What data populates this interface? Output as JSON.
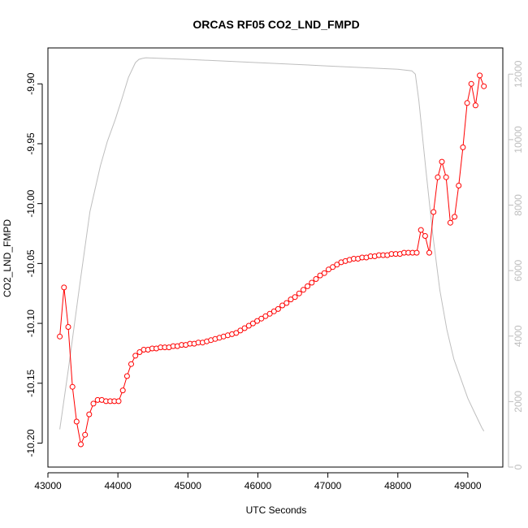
{
  "chart_data": {
    "type": "line",
    "title": "ORCAS RF05 CO2_LND_FMPD",
    "xlabel": "UTC Seconds",
    "ylabel": "CO2_LND_FMPD",
    "xlim": [
      43000,
      49500
    ],
    "ylim": [
      -10.22,
      -9.87
    ],
    "y2lim": [
      0,
      12800
    ],
    "x_ticks": [
      "43000",
      "44000",
      "45000",
      "46000",
      "47000",
      "48000",
      "49000"
    ],
    "y_ticks": [
      "-10.20",
      "-10.15",
      "-10.10",
      "-10.05",
      "-10.00",
      "-9.95",
      "-9.90"
    ],
    "y2_ticks": [
      "0",
      "2000",
      "4000",
      "6000",
      "8000",
      "10000",
      "12000"
    ],
    "grid": false,
    "colors": {
      "primary": "#ff0000",
      "secondary": "#bebebe",
      "axis": "#000000"
    },
    "series": [
      {
        "axis": "left",
        "style": "line-with-open-circles",
        "x": [
          43170,
          43230,
          43290,
          43350,
          43410,
          43470,
          43530,
          43590,
          43650,
          43710,
          43770,
          43830,
          43890,
          43950,
          44010,
          44070,
          44130,
          44190,
          44250,
          44310,
          44370,
          44430,
          44490,
          44550,
          44610,
          44670,
          44730,
          44790,
          44850,
          44910,
          44970,
          45030,
          45090,
          45150,
          45210,
          45270,
          45330,
          45390,
          45450,
          45510,
          45570,
          45630,
          45690,
          45750,
          45810,
          45870,
          45930,
          45990,
          46050,
          46110,
          46170,
          46230,
          46290,
          46350,
          46410,
          46470,
          46530,
          46590,
          46650,
          46710,
          46770,
          46830,
          46890,
          46950,
          47010,
          47070,
          47130,
          47190,
          47250,
          47310,
          47370,
          47430,
          47490,
          47550,
          47610,
          47670,
          47730,
          47790,
          47850,
          47910,
          47970,
          48030,
          48090,
          48150,
          48210,
          48270,
          48330,
          48390,
          48450,
          48510,
          48570,
          48630,
          48690,
          48750,
          48810,
          48870,
          48930,
          48990,
          49050,
          49110,
          49170,
          49230
        ],
        "y": [
          -10.111,
          -10.07,
          -10.103,
          -10.153,
          -10.182,
          -10.201,
          -10.193,
          -10.176,
          -10.167,
          -10.164,
          -10.164,
          -10.165,
          -10.165,
          -10.165,
          -10.165,
          -10.156,
          -10.144,
          -10.134,
          -10.127,
          -10.124,
          -10.122,
          -10.122,
          -10.121,
          -10.121,
          -10.12,
          -10.12,
          -10.12,
          -10.119,
          -10.119,
          -10.118,
          -10.118,
          -10.117,
          -10.117,
          -10.116,
          -10.116,
          -10.115,
          -10.114,
          -10.113,
          -10.112,
          -10.111,
          -10.11,
          -10.109,
          -10.108,
          -10.106,
          -10.104,
          -10.102,
          -10.1,
          -10.098,
          -10.096,
          -10.094,
          -10.092,
          -10.09,
          -10.088,
          -10.085,
          -10.083,
          -10.08,
          -10.078,
          -10.075,
          -10.072,
          -10.069,
          -10.066,
          -10.063,
          -10.06,
          -10.058,
          -10.055,
          -10.053,
          -10.051,
          -10.049,
          -10.048,
          -10.047,
          -10.046,
          -10.046,
          -10.045,
          -10.045,
          -10.044,
          -10.044,
          -10.043,
          -10.043,
          -10.043,
          -10.042,
          -10.042,
          -10.042,
          -10.041,
          -10.041,
          -10.041,
          -10.041,
          -10.022,
          -10.027,
          -10.041,
          -10.007,
          -9.978,
          -9.965,
          -9.978,
          -10.016,
          -10.011,
          -9.985,
          -9.953,
          -9.916,
          -9.9,
          -9.918,
          -9.893,
          -9.902
        ]
      },
      {
        "axis": "right",
        "style": "line",
        "x": [
          43170,
          43300,
          43450,
          43600,
          43750,
          43850,
          43960,
          44050,
          44150,
          44250,
          44300,
          44350,
          44400,
          45000,
          46000,
          47000,
          48000,
          48200,
          48250,
          48300,
          48400,
          48500,
          48600,
          48700,
          48800,
          48900,
          49000,
          49100,
          49200,
          49230
        ],
        "y": [
          1150,
          3100,
          5500,
          7800,
          9200,
          9950,
          10600,
          11200,
          11900,
          12350,
          12450,
          12480,
          12500,
          12450,
          12350,
          12250,
          12150,
          12100,
          12000,
          11200,
          9100,
          7100,
          5400,
          4200,
          3300,
          2700,
          2100,
          1650,
          1200,
          1100
        ]
      }
    ]
  }
}
